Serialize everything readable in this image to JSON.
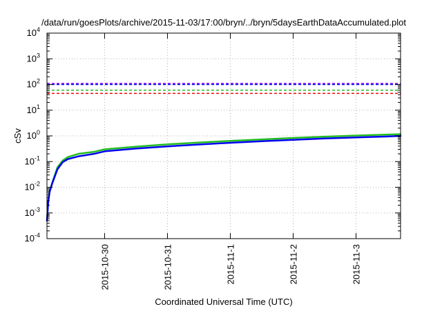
{
  "chart_data": {
    "type": "line",
    "title": "/data/run/goesPlots/archive/2015-11-03/17:00/bryn/../bryn/5daysEarthDataAccumulated.plot",
    "xlabel": "Coordinated Universal Time (UTC)",
    "ylabel": "cSv",
    "x_scale": "date",
    "y_scale": "log",
    "xlim": [
      "2015-10-29T02:00",
      "2015-11-03T17:00"
    ],
    "ylim": [
      0.0001,
      10000
    ],
    "grid": true,
    "legend": "none",
    "x_ticks": [
      "2015-10-30",
      "2015-10-31",
      "2015-11-1",
      "2015-11-2",
      "2015-11-3"
    ],
    "x_tick_values": [
      "2015-10-30T00:00",
      "2015-10-31T00:00",
      "2015-11-01T00:00",
      "2015-11-02T00:00",
      "2015-11-03T00:00"
    ],
    "y_ticks": [
      {
        "base": "10",
        "exp": "-4",
        "value": 0.0001
      },
      {
        "base": "10",
        "exp": "-3",
        "value": 0.001
      },
      {
        "base": "10",
        "exp": "-2",
        "value": 0.01
      },
      {
        "base": "10",
        "exp": "-1",
        "value": 0.1
      },
      {
        "base": "10",
        "exp": "0",
        "value": 1
      },
      {
        "base": "10",
        "exp": "1",
        "value": 10
      },
      {
        "base": "10",
        "exp": "2",
        "value": 100
      },
      {
        "base": "10",
        "exp": "3",
        "value": 1000
      },
      {
        "base": "10",
        "exp": "4",
        "value": 10000
      }
    ],
    "series": [
      {
        "color": "#22bb22",
        "width": 2.5,
        "dashed": false,
        "points": [
          [
            "2015-10-29T02:00",
            0.0005
          ],
          [
            "2015-10-29T02:30",
            0.003
          ],
          [
            "2015-10-29T03:00",
            0.007
          ],
          [
            "2015-10-29T04:00",
            0.015
          ],
          [
            "2015-10-29T06:00",
            0.06
          ],
          [
            "2015-10-29T08:00",
            0.11
          ],
          [
            "2015-10-29T10:00",
            0.15
          ],
          [
            "2015-10-29T14:00",
            0.2
          ],
          [
            "2015-10-29T20:00",
            0.24
          ],
          [
            "2015-10-30T00:00",
            0.3
          ],
          [
            "2015-10-30T12:00",
            0.38
          ],
          [
            "2015-10-31T00:00",
            0.47
          ],
          [
            "2015-10-31T12:00",
            0.55
          ],
          [
            "2015-11-01T00:00",
            0.64
          ],
          [
            "2015-11-01T12:00",
            0.73
          ],
          [
            "2015-11-02T00:00",
            0.83
          ],
          [
            "2015-11-02T12:00",
            0.93
          ],
          [
            "2015-11-03T00:00",
            1.03
          ],
          [
            "2015-11-03T12:00",
            1.12
          ],
          [
            "2015-11-03T17:00",
            1.17
          ]
        ]
      },
      {
        "color": "#0000ee",
        "width": 2.5,
        "dashed": false,
        "points": [
          [
            "2015-10-29T02:00",
            0.0005
          ],
          [
            "2015-10-29T02:30",
            0.0028
          ],
          [
            "2015-10-29T03:00",
            0.0065
          ],
          [
            "2015-10-29T04:00",
            0.014
          ],
          [
            "2015-10-29T06:00",
            0.05
          ],
          [
            "2015-10-29T08:00",
            0.095
          ],
          [
            "2015-10-29T10:00",
            0.125
          ],
          [
            "2015-10-29T14:00",
            0.16
          ],
          [
            "2015-10-29T20:00",
            0.2
          ],
          [
            "2015-10-30T00:00",
            0.25
          ],
          [
            "2015-10-30T12:00",
            0.32
          ],
          [
            "2015-10-31T00:00",
            0.39
          ],
          [
            "2015-10-31T12:00",
            0.46
          ],
          [
            "2015-11-01T00:00",
            0.54
          ],
          [
            "2015-11-01T12:00",
            0.62
          ],
          [
            "2015-11-02T00:00",
            0.7
          ],
          [
            "2015-11-02T12:00",
            0.79
          ],
          [
            "2015-11-03T00:00",
            0.87
          ],
          [
            "2015-11-03T12:00",
            0.95
          ],
          [
            "2015-11-03T17:00",
            1.0
          ]
        ]
      },
      {
        "color": "#8800ff",
        "width": 1.5,
        "dashed": true,
        "points": [
          [
            "2015-10-29T02:00",
            110
          ],
          [
            "2015-11-03T17:00",
            110
          ]
        ]
      },
      {
        "color": "#0000ee",
        "width": 1.5,
        "dashed": true,
        "points": [
          [
            "2015-10-29T02:00",
            100
          ],
          [
            "2015-11-03T17:00",
            100
          ]
        ]
      },
      {
        "color": "#22bb22",
        "width": 1.5,
        "dashed": true,
        "points": [
          [
            "2015-10-29T02:00",
            60
          ],
          [
            "2015-11-03T17:00",
            60
          ]
        ]
      },
      {
        "color": "#ee0000",
        "width": 1.5,
        "dashed": true,
        "points": [
          [
            "2015-10-29T02:00",
            45
          ],
          [
            "2015-11-03T17:00",
            45
          ]
        ]
      }
    ]
  }
}
